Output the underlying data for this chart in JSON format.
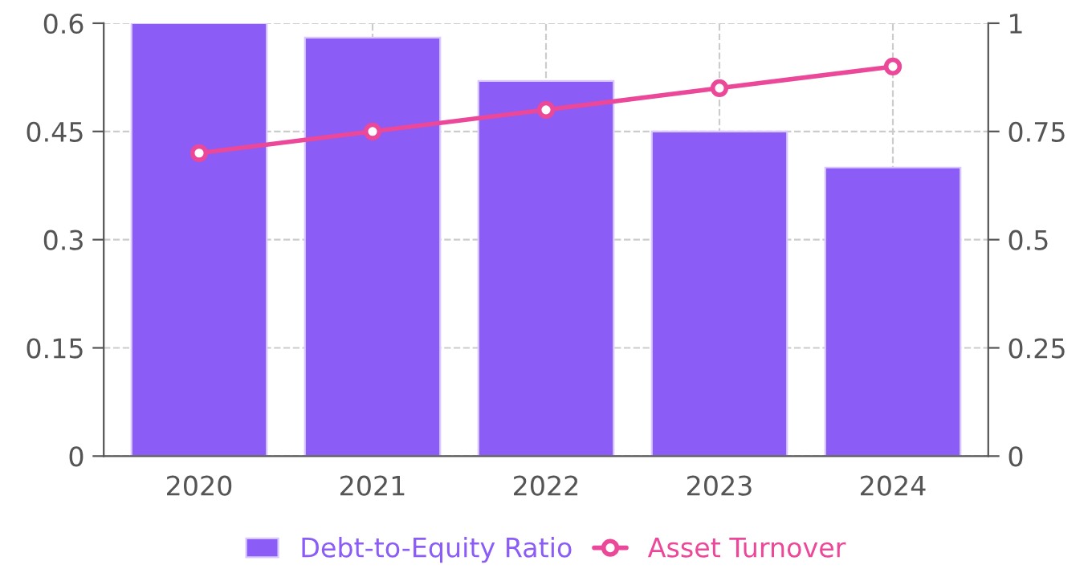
{
  "chart_data": {
    "type": "bar",
    "categories": [
      "2020",
      "2021",
      "2022",
      "2023",
      "2024"
    ],
    "series": [
      {
        "name": "Debt-to-Equity Ratio",
        "color": "#8b5cf6",
        "values": [
          0.6,
          0.58,
          0.52,
          0.45,
          0.4
        ]
      },
      {
        "name": "Asset Turnover",
        "type": "line",
        "axis": "y2",
        "color": "#ec4899",
        "marker": "circle",
        "values": [
          0.7,
          0.75,
          0.8,
          0.85,
          0.9
        ]
      }
    ],
    "ylim": [
      0,
      0.6
    ],
    "yticks": [
      0,
      0.15,
      0.3,
      0.45,
      0.6
    ],
    "y2lim": [
      0,
      1
    ],
    "y2ticks": [
      0,
      0.25,
      0.5,
      0.75,
      1
    ],
    "grid": true,
    "legend": "bottom"
  }
}
